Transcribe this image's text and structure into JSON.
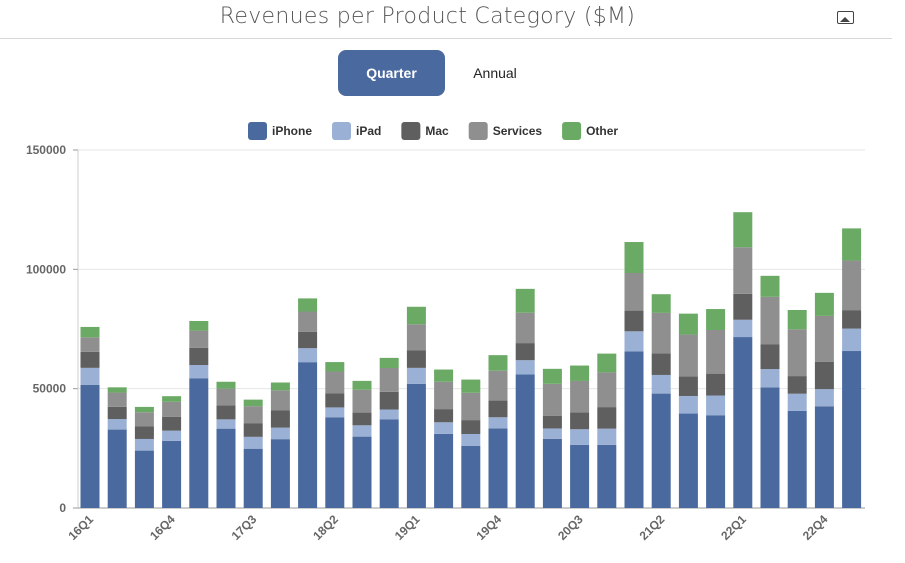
{
  "header": {
    "title": "Revenues per Product Category ($M)",
    "image_icon": "image-icon"
  },
  "toggle": {
    "quarter_label": "Quarter",
    "annual_label": "Annual",
    "selected": "Quarter"
  },
  "chart_data": {
    "type": "bar",
    "stacked": true,
    "title": "",
    "xlabel": "",
    "ylabel": "",
    "ylim": [
      0,
      150000
    ],
    "yticks": [
      "0",
      "50000",
      "100000",
      "150000"
    ],
    "grid": true,
    "legend": "top",
    "categories": [
      "16Q1",
      "16Q2",
      "16Q3",
      "16Q4",
      "17Q1",
      "17Q2",
      "17Q3",
      "17Q4",
      "18Q1",
      "18Q2",
      "18Q3",
      "18Q4",
      "19Q1",
      "19Q2",
      "19Q3",
      "19Q4",
      "20Q1",
      "20Q2",
      "20Q3",
      "20Q4",
      "21Q1",
      "21Q2",
      "21Q3",
      "21Q4",
      "22Q1",
      "22Q2",
      "22Q3",
      "22Q4",
      "23Q1"
    ],
    "visible_xticks": [
      "16Q1",
      "16Q4",
      "17Q3",
      "18Q2",
      "19Q1",
      "19Q4",
      "20Q3",
      "21Q2",
      "22Q1",
      "22Q4"
    ],
    "series": [
      {
        "name": "iPhone",
        "color": "#4a6a9f",
        "values": [
          51635,
          32857,
          24048,
          28160,
          54378,
          33249,
          24846,
          28846,
          61104,
          38032,
          29906,
          37185,
          51982,
          31051,
          25986,
          33362,
          55957,
          28962,
          26418,
          26444,
          65597,
          47938,
          39570,
          38868,
          71628,
          50570,
          40665,
          42626,
          65775
        ]
      },
      {
        "name": "iPad",
        "color": "#9ab0d4",
        "values": [
          7084,
          4413,
          4876,
          4255,
          5533,
          3889,
          4969,
          4831,
          5862,
          4113,
          4741,
          4089,
          6729,
          4872,
          5023,
          4656,
          5977,
          4368,
          6582,
          6797,
          8435,
          7807,
          7368,
          8252,
          7248,
          7646,
          7224,
          7174,
          9396
        ]
      },
      {
        "name": "Mac",
        "color": "#5f5f5f",
        "values": [
          6746,
          5107,
          5239,
          5739,
          7244,
          5844,
          5592,
          7170,
          6895,
          5848,
          5330,
          7411,
          7416,
          5513,
          5820,
          6991,
          7160,
          5351,
          7079,
          9032,
          8675,
          9102,
          8235,
          9178,
          10852,
          10435,
          7382,
          11508,
          7735
        ]
      },
      {
        "name": "Services",
        "color": "#8f8f8f",
        "values": [
          6056,
          5991,
          5976,
          6325,
          7172,
          7041,
          7266,
          8501,
          8471,
          9190,
          9548,
          9981,
          10875,
          11450,
          11455,
          12511,
          12715,
          13348,
          13156,
          14549,
          15761,
          16901,
          17486,
          18277,
          19516,
          19821,
          19604,
          19188,
          20766
        ]
      },
      {
        "name": "Other",
        "color": "#6aaa64",
        "values": [
          4351,
          2189,
          2219,
          2372,
          4024,
          2873,
          2735,
          3231,
          5489,
          3954,
          3740,
          4234,
          7308,
          5129,
          5525,
          6520,
          10010,
          6284,
          6450,
          7876,
          12971,
          7836,
          8775,
          8785,
          14701,
          8806,
          8084,
          9650,
          13484
        ]
      }
    ]
  }
}
